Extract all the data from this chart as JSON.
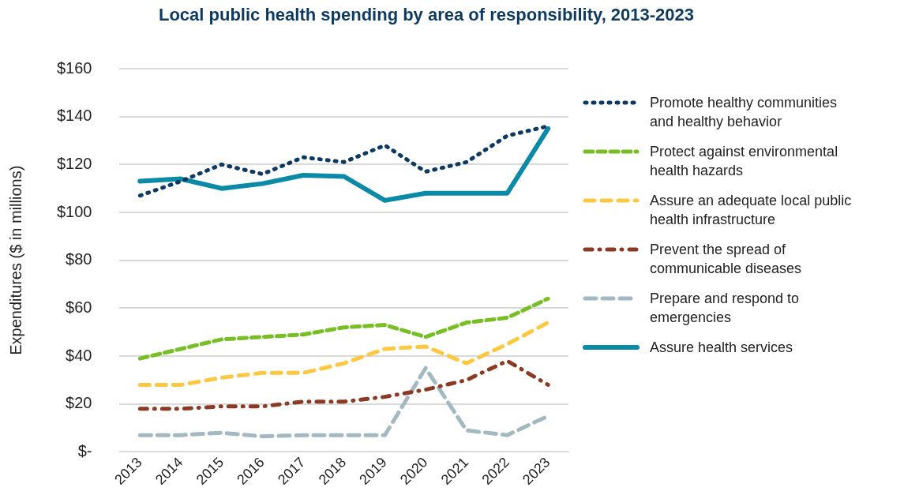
{
  "chart_data": {
    "type": "line",
    "title": "Local public health spending by area of responsibility, 2013-2023",
    "ylabel": "Expenditures ($ in millions)",
    "categories": [
      "2013",
      "2014",
      "2015",
      "2016",
      "2017",
      "2018",
      "2019",
      "2020",
      "2021",
      "2022",
      "2023"
    ],
    "ylim": [
      0,
      160
    ],
    "yticks": [
      {
        "value": 0,
        "label": "$-"
      },
      {
        "value": 20,
        "label": "$20"
      },
      {
        "value": 40,
        "label": "$40"
      },
      {
        "value": 60,
        "label": "$60"
      },
      {
        "value": 80,
        "label": "$80"
      },
      {
        "value": 100,
        "label": "$100"
      },
      {
        "value": 120,
        "label": "$120"
      },
      {
        "value": 140,
        "label": "$140"
      },
      {
        "value": 160,
        "label": "$160"
      }
    ],
    "grid": "y",
    "legend": "right",
    "marker": "none",
    "series": [
      {
        "name": "Promote healthy communities and healthy behavior",
        "color": "#0d3a63",
        "line_style": "dotted",
        "values": [
          107,
          113,
          120,
          116,
          123,
          121,
          128,
          117,
          121,
          132,
          136
        ]
      },
      {
        "name": "Protect against environmental health hazards",
        "color": "#78bf26",
        "line_style": "dashed",
        "values": [
          39,
          43,
          47,
          48,
          49,
          52,
          53,
          48,
          54,
          56,
          64
        ]
      },
      {
        "name": "Assure an adequate local public health infrastructure",
        "color": "#fcc842",
        "line_style": "dashed",
        "values": [
          28,
          28,
          31,
          33,
          33,
          37,
          43,
          44,
          37,
          45,
          54
        ]
      },
      {
        "name": "Prevent the spread of communicable diseases",
        "color": "#8b3a24",
        "line_style": "dashed",
        "values": [
          18,
          18,
          19,
          19,
          21,
          21,
          23,
          26,
          30,
          38,
          28
        ]
      },
      {
        "name": "Prepare and respond to emergencies",
        "color": "#a3b8bf",
        "line_style": "dashed",
        "values": [
          7,
          7,
          8,
          6.5,
          7,
          7,
          7,
          35,
          9,
          7,
          15
        ]
      },
      {
        "name": "Assure health services",
        "color": "#0a8aa6",
        "line_style": "solid",
        "values": [
          113,
          114,
          110,
          112,
          115.5,
          115,
          105,
          108,
          108,
          108,
          135
        ]
      }
    ]
  }
}
